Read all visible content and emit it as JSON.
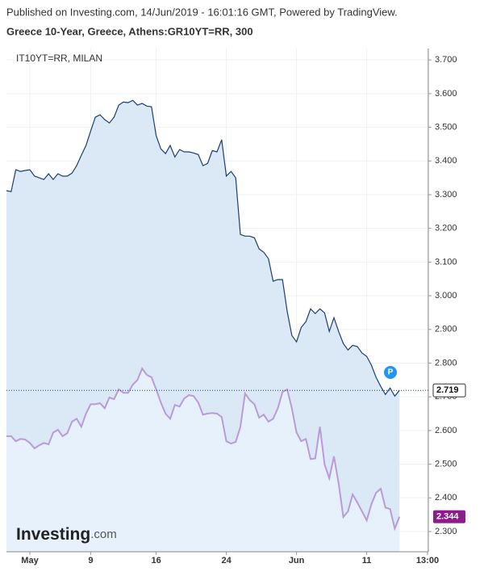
{
  "chart_data": {
    "type": "area",
    "published": "Published on Investing.com, 14/Jun/2019 - 16:01:16 GMT, Powered by TradingView.",
    "title": "Greece 10-Year, Greece, Athens:GR10YT=RR, 300",
    "annotation": "P",
    "logo": {
      "brand": "Investing",
      "suffix": ".com"
    },
    "categories": [
      null,
      null,
      null,
      null,
      null,
      "May",
      null,
      null,
      null,
      null,
      null,
      null,
      null,
      null,
      null,
      null,
      null,
      null,
      "9",
      null,
      null,
      null,
      null,
      null,
      null,
      null,
      null,
      null,
      null,
      null,
      null,
      null,
      "16",
      null,
      null,
      null,
      null,
      null,
      null,
      null,
      null,
      null,
      null,
      null,
      null,
      null,
      null,
      "24",
      null,
      null,
      null,
      null,
      null,
      null,
      null,
      null,
      null,
      null,
      null,
      null,
      null,
      null,
      "Jun",
      null,
      null,
      null,
      null,
      null,
      null,
      null,
      null,
      null,
      null,
      null,
      null,
      null,
      null,
      "11",
      null,
      null,
      null,
      null,
      null,
      null,
      null,
      null,
      null,
      null,
      null,
      null,
      "13:00"
    ],
    "series": [
      {
        "color": "#1b3f6e",
        "fill": "#dbe8f5",
        "values": [
          3.312,
          3.309,
          3.374,
          3.369,
          3.372,
          3.374,
          3.355,
          3.35,
          3.345,
          3.362,
          3.345,
          3.362,
          3.355,
          3.355,
          3.364,
          3.386,
          3.417,
          3.446,
          3.489,
          3.53,
          3.537,
          3.523,
          3.513,
          3.53,
          3.566,
          3.575,
          3.573,
          3.58,
          3.566,
          3.571,
          3.563,
          3.561,
          3.475,
          3.436,
          3.422,
          3.446,
          3.412,
          3.434,
          3.427,
          3.427,
          3.424,
          3.419,
          3.386,
          3.393,
          3.431,
          3.427,
          3.463,
          3.355,
          3.369,
          3.35,
          3.182,
          3.177,
          3.177,
          3.172,
          3.139,
          3.129,
          3.11,
          3.043,
          3.048,
          3.048,
          2.954,
          2.882,
          2.863,
          2.906,
          2.923,
          2.961,
          2.947,
          2.961,
          2.949,
          2.894,
          2.935,
          2.894,
          2.858,
          2.839,
          2.853,
          2.849,
          2.83,
          2.82,
          2.794,
          2.758,
          2.731,
          2.707,
          2.726,
          2.702,
          2.719,
          null,
          null,
          null,
          null,
          null,
          null
        ]
      },
      {
        "name": "IT10YT=RR, MILAN",
        "color": "#b99bd8",
        "fill": "#e7f1fb",
        "label_color": "#8e1b8e",
        "values": [
          2.583,
          2.583,
          2.568,
          2.575,
          2.573,
          2.563,
          2.547,
          2.556,
          2.563,
          2.559,
          2.594,
          2.602,
          2.583,
          2.592,
          2.626,
          2.635,
          2.611,
          2.65,
          2.678,
          2.678,
          2.681,
          2.666,
          2.698,
          2.693,
          2.722,
          2.712,
          2.712,
          2.736,
          2.75,
          2.784,
          2.765,
          2.758,
          2.722,
          2.683,
          2.65,
          2.635,
          2.676,
          2.671,
          2.695,
          2.705,
          2.702,
          2.683,
          2.647,
          2.65,
          2.652,
          2.65,
          2.64,
          2.568,
          2.561,
          2.566,
          2.611,
          2.71,
          2.69,
          2.678,
          2.638,
          2.647,
          2.626,
          2.635,
          2.666,
          2.714,
          2.722,
          2.666,
          2.594,
          2.568,
          2.575,
          2.515,
          2.517,
          2.611,
          2.499,
          2.458,
          2.523,
          2.443,
          2.343,
          2.36,
          2.41,
          2.386,
          2.36,
          2.333,
          2.381,
          2.415,
          2.427,
          2.371,
          2.367,
          2.309,
          2.344,
          null,
          null,
          null,
          null,
          null,
          null
        ]
      }
    ],
    "ylim": [
      2.24,
      3.734
    ],
    "yticks": [
      {
        "value": 2.3,
        "label": "2.300"
      },
      {
        "value": 2.4,
        "label": "2.400"
      },
      {
        "value": 2.5,
        "label": "2.500"
      },
      {
        "value": 2.6,
        "label": "2.600"
      },
      {
        "value": 2.7,
        "label": "2.700"
      },
      {
        "value": 2.8,
        "label": "2.800"
      },
      {
        "value": 2.9,
        "label": "2.900"
      },
      {
        "value": 3.0,
        "label": "3.000"
      },
      {
        "value": 3.1,
        "label": "3.100"
      },
      {
        "value": 3.2,
        "label": "3.200"
      },
      {
        "value": 3.3,
        "label": "3.300"
      },
      {
        "value": 3.4,
        "label": "3.400"
      },
      {
        "value": 3.5,
        "label": "3.500"
      },
      {
        "value": 3.6,
        "label": "3.600"
      },
      {
        "value": 3.7,
        "label": "3.700"
      }
    ],
    "grid": true
  }
}
